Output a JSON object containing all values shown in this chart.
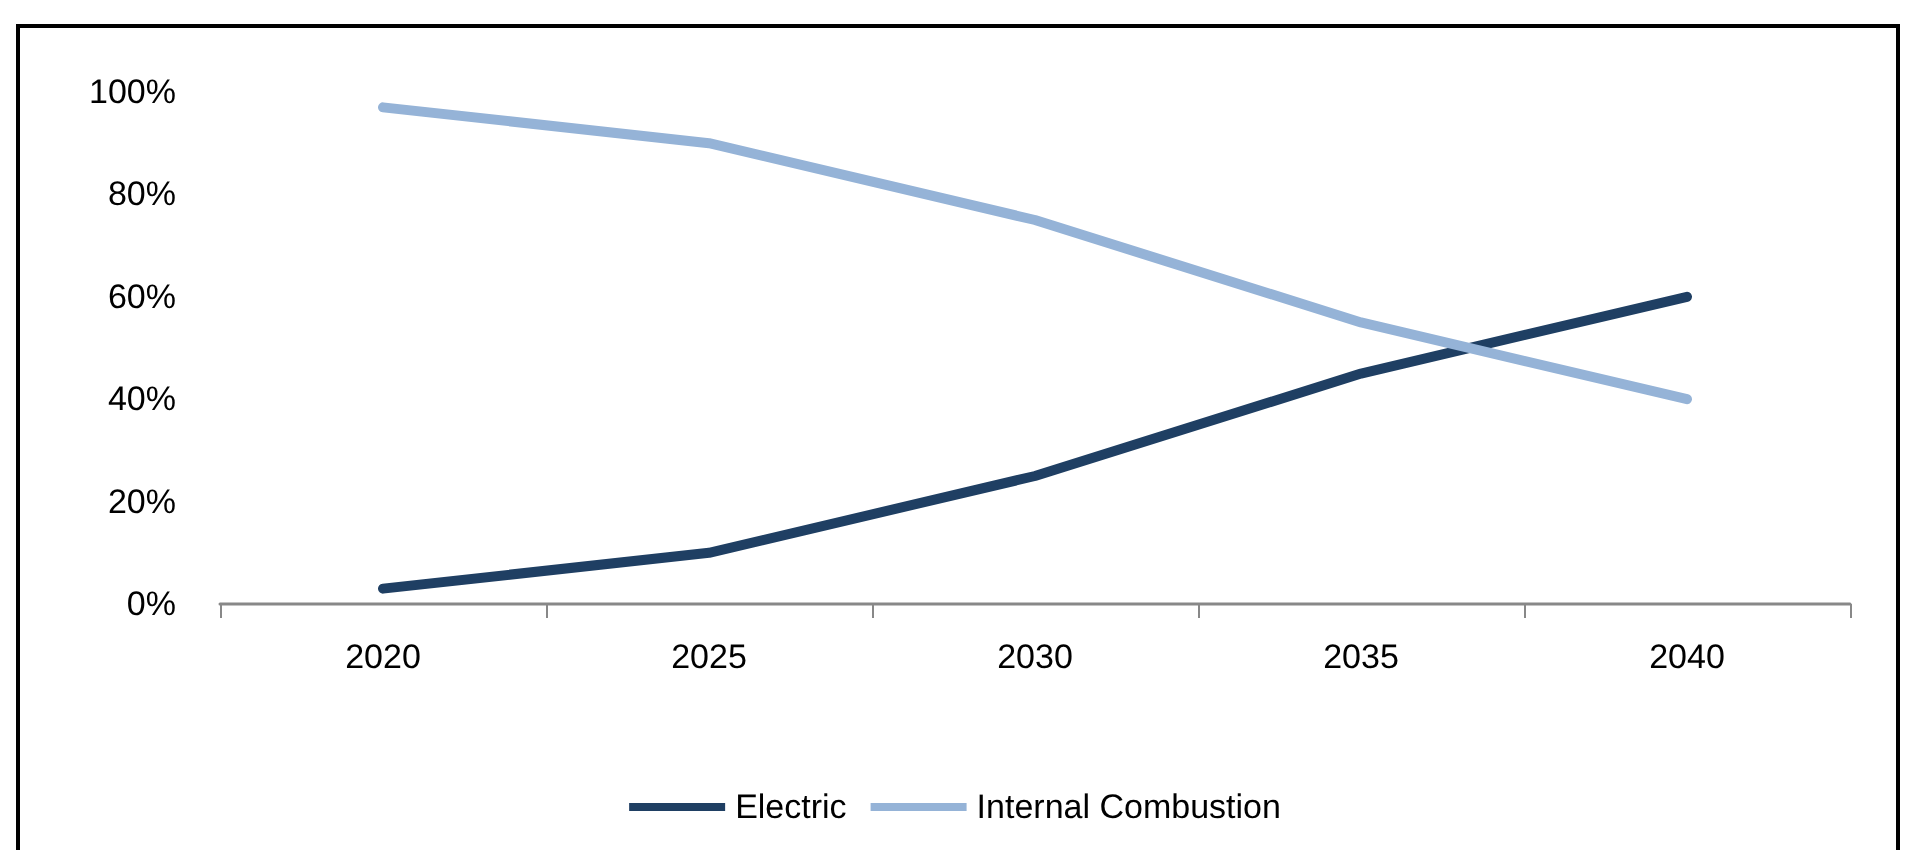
{
  "chart_data": {
    "type": "line",
    "categories": [
      "2020",
      "2025",
      "2030",
      "2035",
      "2040"
    ],
    "series": [
      {
        "name": "Electric",
        "color": "#1f3f63",
        "values": [
          3,
          10,
          25,
          45,
          60
        ]
      },
      {
        "name": "Internal Combustion",
        "color": "#95b3d7",
        "values": [
          97,
          90,
          75,
          55,
          40
        ]
      }
    ],
    "ylim": [
      0,
      100
    ],
    "yticks": [
      {
        "value": 0,
        "label": "0%"
      },
      {
        "value": 20,
        "label": "20%"
      },
      {
        "value": 40,
        "label": "40%"
      },
      {
        "value": 60,
        "label": "60%"
      },
      {
        "value": 80,
        "label": "80%"
      },
      {
        "value": 100,
        "label": "100%"
      }
    ],
    "grid": false,
    "legend": "bottom",
    "marker": "none",
    "line_style": "solid"
  }
}
